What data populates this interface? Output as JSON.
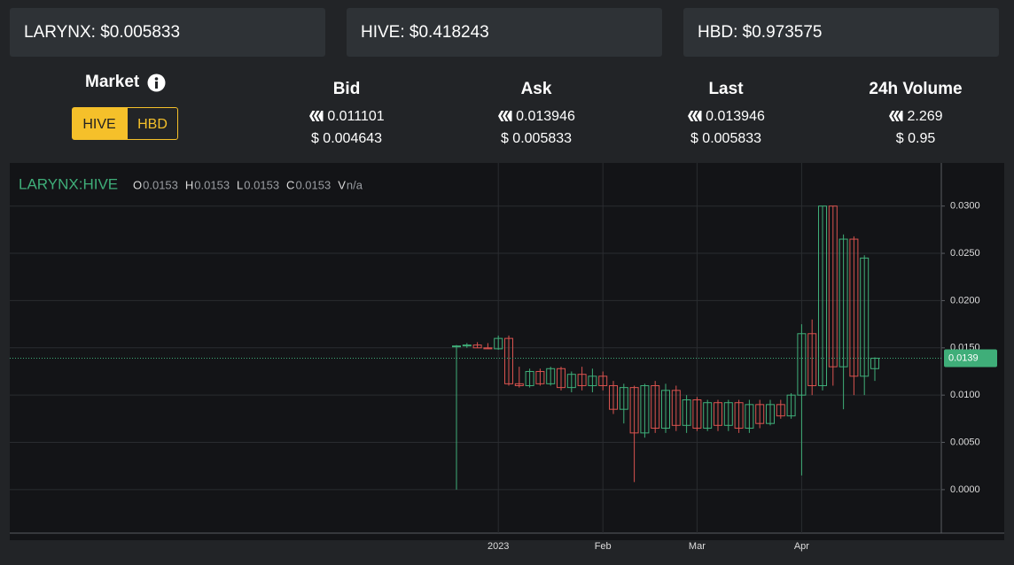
{
  "tickers": [
    "LARYNX: $0.005833",
    "HIVE: $0.418243",
    "HBD: $0.973575"
  ],
  "market": {
    "label": "Market",
    "options": [
      "HIVE",
      "HBD"
    ],
    "active": 0
  },
  "stats": [
    {
      "title": "Bid",
      "hive": "0.011101",
      "usd": "$ 0.004643"
    },
    {
      "title": "Ask",
      "hive": "0.013946",
      "usd": "$ 0.005833"
    },
    {
      "title": "Last",
      "hive": "0.013946",
      "usd": "$ 0.005833"
    },
    {
      "title": "24h Volume",
      "hive": "2.269",
      "usd": "$ 0.95"
    }
  ],
  "chart_data": {
    "type": "candlestick",
    "title": "LARYNX:HIVE",
    "legend": [
      {
        "key": "O",
        "value": "0.0153"
      },
      {
        "key": "H",
        "value": "0.0153"
      },
      {
        "key": "L",
        "value": "0.0153"
      },
      {
        "key": "C",
        "value": "0.0153"
      },
      {
        "key": "V",
        "value": "n/a"
      }
    ],
    "categories": [
      null,
      null,
      null,
      null,
      "2023",
      null,
      null,
      null,
      null,
      null,
      null,
      null,
      null,
      null,
      "Feb",
      null,
      null,
      null,
      null,
      null,
      null,
      null,
      null,
      "Mar",
      null,
      null,
      null,
      null,
      null,
      null,
      null,
      null,
      null,
      "Apr",
      null,
      null,
      null,
      null,
      null,
      null,
      null
    ],
    "open": [
      0.0152,
      0.0152,
      0.0153,
      0.015,
      0.0149,
      0.016,
      0.0112,
      0.011,
      0.0125,
      0.0112,
      0.0128,
      0.0108,
      0.0122,
      0.011,
      0.012,
      0.011,
      0.0085,
      0.0108,
      0.006,
      0.011,
      0.0065,
      0.0105,
      0.0068,
      0.0095,
      0.0065,
      0.0092,
      0.0068,
      0.0092,
      0.0065,
      0.009,
      0.007,
      0.009,
      0.0078,
      0.01,
      0.0165,
      0.011,
      0.03,
      0.013,
      0.0265,
      0.012,
      0.0128
    ],
    "high": [
      0.0153,
      0.0155,
      0.0156,
      0.0155,
      0.0163,
      0.0163,
      0.013,
      0.0128,
      0.0128,
      0.013,
      0.013,
      0.0125,
      0.013,
      0.0128,
      0.0125,
      0.0115,
      0.0112,
      0.011,
      0.0112,
      0.0115,
      0.0112,
      0.011,
      0.01,
      0.0098,
      0.0095,
      0.0095,
      0.0095,
      0.0095,
      0.0095,
      0.0095,
      0.0095,
      0.0095,
      0.0102,
      0.0175,
      0.018,
      0.03,
      0.03,
      0.027,
      0.0268,
      0.0248,
      0.014
    ],
    "low": [
      0.0,
      0.015,
      0.015,
      0.0149,
      0.0148,
      0.011,
      0.0108,
      0.0108,
      0.011,
      0.011,
      0.0105,
      0.0103,
      0.0105,
      0.0103,
      0.0105,
      0.008,
      0.007,
      0.0008,
      0.0055,
      0.006,
      0.006,
      0.0062,
      0.006,
      0.0062,
      0.0062,
      0.0062,
      0.0062,
      0.006,
      0.006,
      0.0065,
      0.0068,
      0.0075,
      0.0075,
      0.0015,
      0.01,
      0.0105,
      0.011,
      0.0085,
      0.01,
      0.01,
      0.0115
    ],
    "close": [
      0.0152,
      0.0153,
      0.015,
      0.0149,
      0.016,
      0.0112,
      0.011,
      0.0125,
      0.0112,
      0.0128,
      0.0108,
      0.0122,
      0.011,
      0.012,
      0.011,
      0.0085,
      0.0108,
      0.006,
      0.011,
      0.0065,
      0.0105,
      0.0068,
      0.0095,
      0.0065,
      0.0092,
      0.0068,
      0.0092,
      0.0065,
      0.009,
      0.007,
      0.009,
      0.0078,
      0.01,
      0.0165,
      0.011,
      0.03,
      0.013,
      0.0265,
      0.012,
      0.0245,
      0.0139
    ],
    "up_color": "#3fae79",
    "down_color": "#d9534f",
    "ylim": [
      -0.0046,
      0.034
    ],
    "yticks": [
      {
        "value": 0,
        "label": "0.0000"
      },
      {
        "value": 0.005,
        "label": "0.0050"
      },
      {
        "value": 0.01,
        "label": "0.0100"
      },
      {
        "value": 0.015,
        "label": "0.0150"
      },
      {
        "value": 0.02,
        "label": "0.0200"
      },
      {
        "value": 0.025,
        "label": "0.0250"
      },
      {
        "value": 0.03,
        "label": "0.0300"
      }
    ],
    "last_price": 0.0139,
    "grid": true
  }
}
